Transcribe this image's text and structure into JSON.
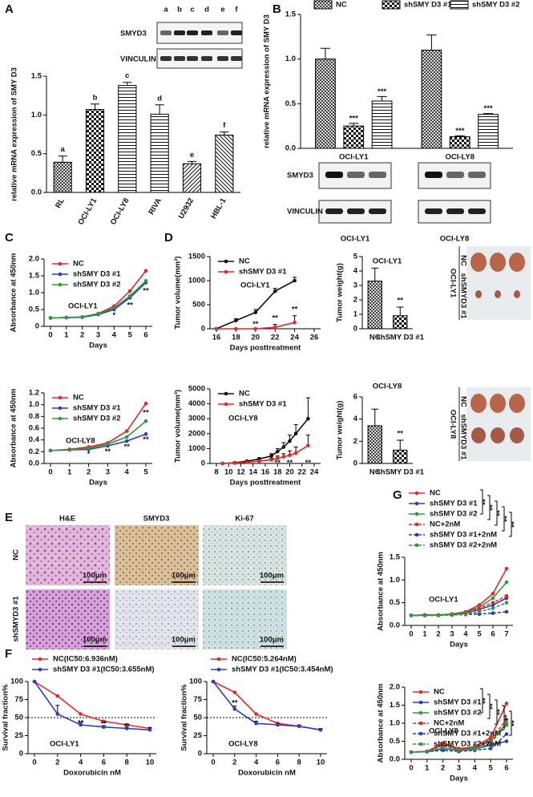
{
  "panel_labels": [
    "A",
    "B",
    "C",
    "D",
    "E",
    "F",
    "G"
  ],
  "blots": {
    "A": {
      "lanes": [
        "a",
        "b",
        "c",
        "d",
        "e",
        "f"
      ],
      "rows": [
        "SMYD3",
        "VINCULIN"
      ]
    },
    "B": {
      "rows": [
        "SMYD3",
        "VINCULIN"
      ],
      "groups": [
        "OCI-LY1",
        "OCI-LY8"
      ]
    }
  },
  "photos": [
    {
      "cell_line": "OCI-LY1",
      "rows": [
        "NC",
        "shSMYD3 #1"
      ]
    },
    {
      "cell_line": "OCI-LY8",
      "rows": [
        "NC",
        "shSMYD3 #1"
      ]
    }
  ],
  "histology": {
    "columns": [
      "H&E",
      "SMYD3",
      "Ki-67"
    ],
    "rows": [
      "NC",
      "shSMYD3 #1"
    ],
    "scale_bar": "100μm"
  },
  "chart_data": [
    {
      "type": "bar",
      "ylabel": "relative mRNA expression of SMY D3",
      "categories": [
        "RL",
        "OCI-LY1",
        "OCI-LY8",
        "RIVA",
        "U2932",
        "HBL-1"
      ],
      "values": [
        0.39,
        1.07,
        1.38,
        1.01,
        0.37,
        0.74
      ],
      "errors": [
        0.08,
        0.07,
        0.04,
        0.12,
        0.03,
        0.04
      ],
      "bar_labels": [
        "a",
        "b",
        "c",
        "d",
        "e",
        "f"
      ],
      "patterns": [
        "crosshatch",
        "checker",
        "hlines",
        "hlines",
        "diag",
        "diag2"
      ],
      "rotate_labels": true,
      "ylim": [
        0,
        1.5
      ],
      "yticks": [
        {
          "value": 0,
          "label": "0.0"
        },
        {
          "value": 0.5,
          "label": "0.5"
        },
        {
          "value": 1,
          "label": "1.0"
        },
        {
          "value": 1.5,
          "label": "1.5"
        }
      ]
    },
    {
      "type": "grouped_bar",
      "ylabel": "relative mRNA expression of SMY D3",
      "categories": [
        "OCI-LY1",
        "OCI-LY8"
      ],
      "legend": "top",
      "series": [
        {
          "name": "NC",
          "pattern": "crosshatch",
          "values": [
            1.0,
            1.1
          ],
          "errors": [
            0.12,
            0.17
          ]
        },
        {
          "name": "shSMY D3 #1",
          "pattern": "checker",
          "values": [
            0.25,
            0.13
          ],
          "errors": [
            0.03,
            0.01
          ],
          "stars": [
            "***",
            "***"
          ]
        },
        {
          "name": "shSMY D3 #2",
          "pattern": "hlines",
          "values": [
            0.53,
            0.38
          ],
          "errors": [
            0.05,
            0.01
          ],
          "stars": [
            "***",
            "***"
          ]
        }
      ],
      "ylim": [
        0,
        1.5
      ],
      "yticks": [
        {
          "value": 0,
          "label": "0.0"
        },
        {
          "value": 0.5,
          "label": "0.5"
        },
        {
          "value": 1,
          "label": "1.0"
        },
        {
          "value": 1.5,
          "label": "1.5"
        }
      ]
    },
    {
      "type": "line",
      "xlabel": "Days",
      "ylabel": "Absorbance at 450nm",
      "annotation": "OCI-LY1",
      "legend": "upper left",
      "x": [
        0,
        1,
        2,
        3,
        4,
        5,
        6
      ],
      "xlim": [
        0,
        6
      ],
      "xticks": [
        0,
        1,
        2,
        3,
        4,
        5,
        6
      ],
      "series": [
        {
          "name": "NC",
          "color": "#e8262a",
          "values": [
            0.25,
            0.26,
            0.28,
            0.38,
            0.6,
            1.05,
            1.65
          ]
        },
        {
          "name": "shSMY D3 #1",
          "color": "#2b3bc4",
          "values": [
            0.25,
            0.26,
            0.27,
            0.35,
            0.5,
            0.85,
            1.3
          ]
        },
        {
          "name": "shSMY D3 #2",
          "color": "#2e9a3a",
          "values": [
            0.25,
            0.26,
            0.28,
            0.37,
            0.55,
            0.9,
            1.35
          ]
        }
      ],
      "annotations": [
        {
          "text": "*",
          "x": 4,
          "y": 0.32
        },
        {
          "text": "**",
          "x": 5,
          "y": 0.62
        },
        {
          "text": "**",
          "x": 6,
          "y": 1.05
        }
      ],
      "ylim": [
        0,
        2.0
      ],
      "yticks": [
        0,
        0.5,
        {
          "value": 1,
          "label": "1.0"
        },
        1.5,
        {
          "value": 2,
          "label": "2.0"
        }
      ]
    },
    {
      "type": "line",
      "xlabel": "Days posttreatment",
      "ylabel": "Tumor volume(mm³)",
      "annotation": "OCI-LY1",
      "legend": "upper left",
      "x": [
        16,
        18,
        20,
        22,
        24
      ],
      "xlim": [
        16,
        26
      ],
      "xticks": [
        16,
        18,
        20,
        22,
        24,
        26
      ],
      "series": [
        {
          "name": "NC",
          "color": "#111111",
          "values": [
            0,
            170,
            340,
            780,
            1000
          ],
          "errors": [
            0,
            40,
            60,
            60,
            70
          ]
        },
        {
          "name": "shSMY D3 #1",
          "color": "#e8262a",
          "values": [
            0,
            0,
            0,
            30,
            130
          ],
          "errors": [
            0,
            0,
            0,
            60,
            140
          ]
        }
      ],
      "annotations": [
        {
          "text": "**",
          "x": 20,
          "y": 90
        },
        {
          "text": "**",
          "x": 22,
          "y": 220
        },
        {
          "text": "**",
          "x": 24,
          "y": 400
        }
      ],
      "ylim": [
        0,
        1500
      ],
      "yticks": [
        0,
        500,
        1000,
        1500
      ]
    },
    {
      "type": "bar",
      "title": "OCI-LY1",
      "ylabel": "Tumor weight(g)",
      "categories": [
        "NC",
        "shSMY D3 #1"
      ],
      "values": [
        3.3,
        0.9
      ],
      "errors": [
        0.9,
        0.6
      ],
      "bar_labels": [
        null,
        "**"
      ],
      "patterns": [
        "crosshatch",
        "checker"
      ],
      "ylim": [
        0,
        5
      ],
      "yticks": [
        0,
        1,
        2,
        3,
        4,
        5
      ]
    },
    {
      "type": "line",
      "xlabel": "Days",
      "ylabel": "Absorbance at 450nm",
      "annotation": "OCI-LY8",
      "legend": "upper left",
      "x": [
        0,
        1,
        2,
        3,
        4,
        5
      ],
      "xlim": [
        0,
        5
      ],
      "xticks": [
        0,
        1,
        2,
        3,
        4,
        5
      ],
      "series": [
        {
          "name": "NC",
          "color": "#e8262a",
          "values": [
            0.22,
            0.24,
            0.28,
            0.35,
            0.55,
            1.02
          ]
        },
        {
          "name": "shSMY D3 #1",
          "color": "#2b3bc4",
          "values": [
            0.22,
            0.23,
            0.24,
            0.3,
            0.38,
            0.5
          ]
        },
        {
          "name": "shSMY D3 #2",
          "color": "#2e9a3a",
          "values": [
            0.22,
            0.23,
            0.26,
            0.33,
            0.45,
            0.72
          ]
        }
      ],
      "annotations": [
        {
          "text": "*",
          "x": 2,
          "y": 0.16
        },
        {
          "text": "**",
          "x": 3,
          "y": 0.2
        },
        {
          "text": "**",
          "x": 4,
          "y": 0.28
        },
        {
          "text": "**",
          "x": 5,
          "y": 0.4
        },
        {
          "text": "**",
          "x": 5,
          "y": 0.86
        }
      ],
      "ylim": [
        0,
        1.2
      ],
      "yticks": [
        {
          "value": 0,
          "label": "0.0"
        },
        0.2,
        0.4,
        0.6,
        0.8,
        {
          "value": 1,
          "label": "1.0"
        },
        1.2
      ]
    },
    {
      "type": "line",
      "xlabel": "Days posttreatment",
      "ylabel": "Tumor volume(mm³)",
      "annotation": "OCI-LY8",
      "legend": "upper left",
      "x": [
        9,
        11,
        13,
        15,
        17,
        18,
        19,
        20,
        21,
        23
      ],
      "xlim": [
        8,
        24
      ],
      "xticks": [
        8,
        10,
        12,
        14,
        16,
        18,
        20,
        22,
        24
      ],
      "series": [
        {
          "name": "NC",
          "color": "#111111",
          "values": [
            0,
            50,
            150,
            300,
            500,
            800,
            1100,
            1500,
            2000,
            3000
          ],
          "errors": [
            0,
            20,
            40,
            80,
            150,
            200,
            300,
            400,
            600,
            1400
          ]
        },
        {
          "name": "shSMY D3 #1",
          "color": "#e8262a",
          "values": [
            0,
            30,
            80,
            150,
            250,
            350,
            450,
            550,
            700,
            1200
          ],
          "errors": [
            0,
            20,
            30,
            50,
            100,
            150,
            200,
            300,
            400,
            700
          ]
        }
      ],
      "annotations": [
        {
          "text": "**",
          "x": 18,
          "y": 30
        },
        {
          "text": "**",
          "x": 20,
          "y": 30
        },
        {
          "text": "**",
          "x": 23,
          "y": 30
        }
      ],
      "ylim": [
        0,
        5000
      ],
      "yticks": [
        0,
        1000,
        2000,
        3000,
        4000,
        5000
      ]
    },
    {
      "type": "bar",
      "title": "OCI-LY8",
      "ylabel": "Tumor weight(g)",
      "categories": [
        "NC",
        "shSMY D3 #1"
      ],
      "values": [
        3.4,
        1.2
      ],
      "errors": [
        1.5,
        0.9
      ],
      "bar_labels": [
        null,
        "**"
      ],
      "patterns": [
        "crosshatch",
        "checker"
      ],
      "ylim": [
        0,
        6
      ],
      "yticks": [
        0,
        2,
        4,
        6
      ]
    },
    {
      "type": "line",
      "xlabel": "Doxorubicin nM",
      "ylabel": "Survival fraction%",
      "annotation": "OCI-LY1",
      "legend": "above",
      "x": [
        0,
        2,
        4,
        6,
        8,
        10
      ],
      "xlim": [
        0,
        10
      ],
      "xticks": [
        0,
        2,
        4,
        6,
        8,
        10
      ],
      "reference_line": 50,
      "series": [
        {
          "name": "NC(IC50:6.936nM)",
          "color": "#e8262a",
          "values": [
            100,
            80,
            55,
            45,
            40,
            35
          ]
        },
        {
          "name": "shSMY D3 #1(IC50:3.655nM)",
          "color": "#2b3bc4",
          "values": [
            100,
            55,
            40,
            37,
            35,
            33
          ],
          "errors": [
            0,
            12,
            3,
            2,
            2,
            3
          ]
        }
      ],
      "annotations": [
        {
          "text": "**",
          "x": 4,
          "y": 42
        },
        {
          "text": "**",
          "x": 6,
          "y": 41
        },
        {
          "text": "**",
          "x": 8,
          "y": 38
        }
      ],
      "ylim": [
        0,
        100
      ],
      "yticks": [
        0,
        25,
        50,
        75,
        100
      ]
    },
    {
      "type": "line",
      "xlabel": "Doxorubicin nM",
      "ylabel": "Survival fraction%",
      "annotation": "OCI-LY8",
      "legend": "above",
      "x": [
        0,
        2,
        4,
        6,
        8,
        10
      ],
      "xlim": [
        0,
        10
      ],
      "xticks": [
        0,
        2,
        4,
        6,
        8,
        10
      ],
      "reference_line": 50,
      "series": [
        {
          "name": "NC(IC50:5.264nM)",
          "color": "#e8262a",
          "values": [
            100,
            85,
            55,
            42,
            38,
            33
          ]
        },
        {
          "name": "shSMY D3 #1(IC50:3.454nM)",
          "color": "#2b3bc4",
          "values": [
            100,
            62,
            42,
            40,
            38,
            33
          ],
          "errors": [
            0,
            4,
            3,
            2,
            2,
            2
          ]
        }
      ],
      "annotations": [
        {
          "text": "**",
          "x": 2,
          "y": 70
        }
      ],
      "ylim": [
        0,
        100
      ],
      "yticks": [
        0,
        25,
        50,
        75,
        100
      ]
    },
    {
      "type": "line",
      "xlabel": "Days",
      "ylabel": "Absorbance at 450nm",
      "annotation": "OCI-LY1",
      "legend": "above",
      "x": [
        0,
        1,
        2,
        3,
        4,
        5,
        6,
        7
      ],
      "xlim": [
        0,
        7
      ],
      "xticks": [
        0,
        1,
        2,
        3,
        4,
        5,
        6,
        7
      ],
      "series": [
        {
          "name": "NC",
          "color": "#e8262a",
          "values": [
            0.22,
            0.23,
            0.23,
            0.25,
            0.3,
            0.45,
            0.7,
            1.25
          ]
        },
        {
          "name": "shSMY D3 #1",
          "color": "#2b3bc4",
          "values": [
            0.22,
            0.23,
            0.23,
            0.24,
            0.27,
            0.35,
            0.45,
            0.6
          ]
        },
        {
          "name": "shSMY D3 #2",
          "color": "#2e9a3a",
          "values": [
            0.22,
            0.23,
            0.23,
            0.25,
            0.3,
            0.4,
            0.6,
            0.95
          ]
        },
        {
          "name": "NC+2nM",
          "color": "#e8262a",
          "dash": true,
          "values": [
            0.22,
            0.23,
            0.23,
            0.24,
            0.28,
            0.38,
            0.5,
            0.65
          ]
        },
        {
          "name": "shSMY D3 #1+2nM",
          "color": "#2b3bc4",
          "dash": true,
          "values": [
            0.22,
            0.22,
            0.22,
            0.23,
            0.24,
            0.25,
            0.27,
            0.3
          ]
        },
        {
          "name": "shSMY D3 #2+2nM",
          "color": "#2e9a3a",
          "dash": true,
          "values": [
            0.22,
            0.22,
            0.23,
            0.23,
            0.25,
            0.3,
            0.38,
            0.5
          ]
        }
      ],
      "significance": [
        "**",
        "**",
        "**",
        "**",
        "**"
      ],
      "ylim": [
        0,
        1.5
      ],
      "yticks": [
        {
          "value": 0,
          "label": "0.0"
        },
        0.5,
        {
          "value": 1,
          "label": "1.0"
        },
        1.5
      ]
    },
    {
      "type": "line",
      "xlabel": "Days",
      "ylabel": "Absorbance at 450nm",
      "annotation": "OCI-LY8",
      "legend": "upper left",
      "x": [
        0,
        1,
        2,
        3,
        4,
        5,
        6
      ],
      "xlim": [
        0,
        6
      ],
      "xticks": [
        0,
        1,
        2,
        3,
        4,
        5,
        6
      ],
      "series": [
        {
          "name": "NC",
          "color": "#e8262a",
          "values": [
            0.2,
            0.22,
            0.45,
            0.3,
            0.35,
            0.6,
            1.55
          ]
        },
        {
          "name": "shSMY D3 #1",
          "color": "#2b3bc4",
          "values": [
            0.2,
            0.21,
            0.3,
            0.25,
            0.28,
            0.4,
            0.5
          ]
        },
        {
          "name": "shSMY D3 #2",
          "color": "#2e9a3a",
          "values": [
            0.2,
            0.22,
            0.4,
            0.28,
            0.32,
            0.5,
            1.0
          ]
        },
        {
          "name": "NC+2nM",
          "color": "#e8262a",
          "dash": true,
          "values": [
            0.2,
            0.22,
            0.38,
            0.27,
            0.3,
            0.55,
            1.1
          ]
        },
        {
          "name": "shSMY D3 #1+2nM",
          "color": "#2b3bc4",
          "dash": true,
          "values": [
            0.2,
            0.21,
            0.25,
            0.22,
            0.25,
            0.3,
            0.7
          ]
        },
        {
          "name": "shSMY D3 #2+2nM",
          "color": "#2e9a3a",
          "dash": true,
          "values": [
            0.2,
            0.21,
            0.32,
            0.25,
            0.28,
            0.45,
            0.95
          ]
        }
      ],
      "significance": [
        "**",
        "**",
        "**",
        "**",
        "**"
      ],
      "ylim": [
        0,
        2.0
      ],
      "yticks": [
        {
          "value": 0,
          "label": "0.0"
        },
        0.5,
        {
          "value": 1,
          "label": "1.0"
        },
        1.5,
        {
          "value": 2,
          "label": "2.0"
        }
      ]
    }
  ]
}
